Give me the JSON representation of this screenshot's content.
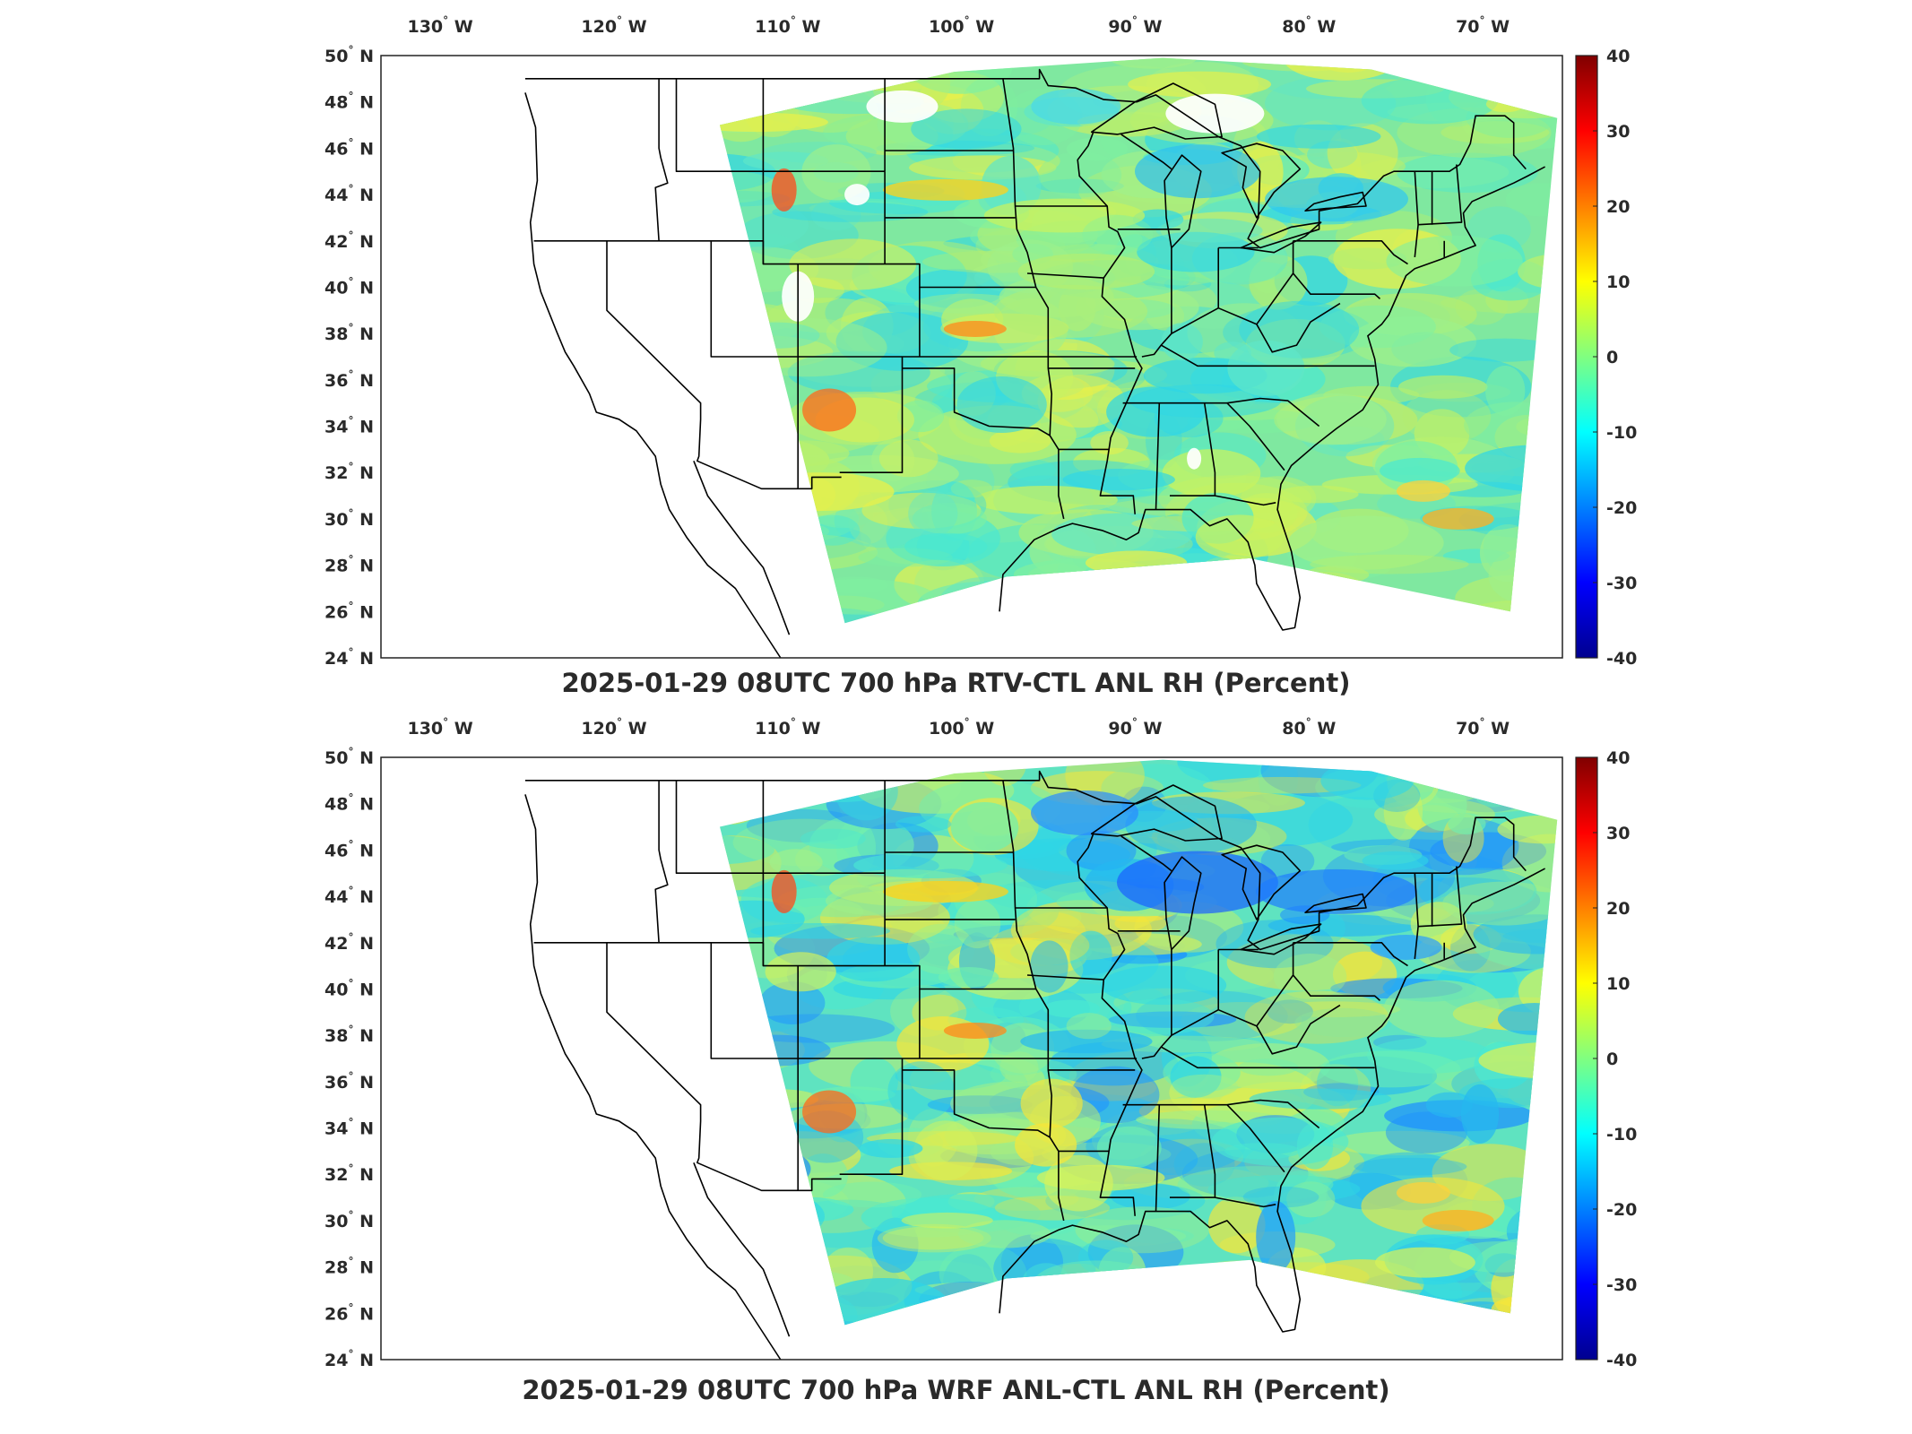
{
  "panels": [
    {
      "id": "rtv",
      "title": "2025-01-29 08UTC 700 hPa RTV-CTL ANL RH (Percent)",
      "variant": "top"
    },
    {
      "id": "wrf",
      "title": "2025-01-29 08UTC 700 hPa WRF ANL-CTL ANL RH (Percent)",
      "variant": "bottom"
    }
  ],
  "axes": {
    "longitude_ticks": [
      "130",
      "120",
      "110",
      "100",
      "90",
      "80",
      "70"
    ],
    "longitude_suffix": "W",
    "latitude_ticks": [
      "50",
      "48",
      "46",
      "44",
      "42",
      "40",
      "38",
      "36",
      "34",
      "32",
      "30",
      "28",
      "26",
      "24"
    ],
    "latitude_suffix": "N",
    "degree_symbol": "°"
  },
  "colorbar": {
    "ticks": [
      "40",
      "30",
      "20",
      "10",
      "0",
      "-10",
      "-20",
      "-30",
      "-40"
    ],
    "range": [
      -40,
      40
    ],
    "colormap": "jet",
    "colors": [
      "#00008f",
      "#0000ff",
      "#0080ff",
      "#00ffff",
      "#80ff80",
      "#ffff00",
      "#ff8000",
      "#ff0000",
      "#800000"
    ]
  },
  "map": {
    "projection": "lambert-conformal",
    "lon_range": [
      -133,
      -65
    ],
    "lat_range": [
      24,
      50
    ],
    "field_fill": "#7fe39a"
  }
}
